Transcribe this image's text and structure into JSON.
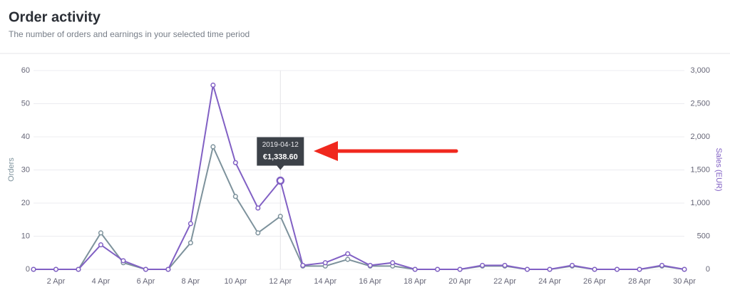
{
  "header": {
    "title": "Order activity",
    "subtitle": "The number of orders and earnings in your selected time period"
  },
  "chart_data": {
    "type": "line",
    "categories": [
      null,
      "2 Apr",
      null,
      "4 Apr",
      null,
      "6 Apr",
      null,
      "8 Apr",
      null,
      "10 Apr",
      null,
      "12 Apr",
      null,
      "14 Apr",
      null,
      "16 Apr",
      null,
      "18 Apr",
      null,
      "20 Apr",
      null,
      "22 Apr",
      null,
      "24 Apr",
      null,
      "26 Apr",
      null,
      "28 Apr",
      null,
      "30 Apr"
    ],
    "series": [
      {
        "name": "Orders",
        "color": "#7d929c",
        "values": [
          0,
          0,
          0,
          11,
          2,
          0,
          0,
          8,
          37,
          22,
          11,
          16,
          1,
          1,
          3,
          1,
          1,
          0,
          0,
          0,
          1,
          1,
          0,
          0,
          1,
          0,
          0,
          0,
          1,
          0
        ]
      },
      {
        "name": "Sales (EUR)",
        "color": "#8160c4",
        "axis": "y2",
        "values": [
          0,
          0,
          0,
          370,
          130,
          0,
          0,
          690,
          2780,
          1610,
          925,
          1338.6,
          60,
          100,
          235,
          60,
          100,
          0,
          0,
          0,
          60,
          60,
          0,
          0,
          60,
          0,
          0,
          0,
          60,
          0
        ],
        "value_labels": [
          null,
          null,
          null,
          null,
          null,
          null,
          null,
          null,
          null,
          null,
          null,
          "€1,338.60",
          null,
          null,
          null,
          null,
          null,
          null,
          null,
          null,
          null,
          null,
          null,
          null,
          null,
          null,
          null,
          null,
          null,
          null
        ]
      }
    ],
    "tooltip_title": "2019-04-12",
    "ylabel": "Orders",
    "y2label": "Sales (EUR)",
    "ylim": [
      0,
      60
    ],
    "yticks": [
      0,
      10,
      20,
      30,
      40,
      50,
      60
    ],
    "y2lim": [
      0,
      3000
    ],
    "y2ticks": [
      0,
      500,
      {
        "value": 1000,
        "label": "1,000"
      },
      {
        "value": 1500,
        "label": "1,500"
      },
      {
        "value": 2000,
        "label": "2,000"
      },
      {
        "value": 2500,
        "label": "2,500"
      },
      {
        "value": 3000,
        "label": "3,000"
      }
    ],
    "grid": true
  }
}
